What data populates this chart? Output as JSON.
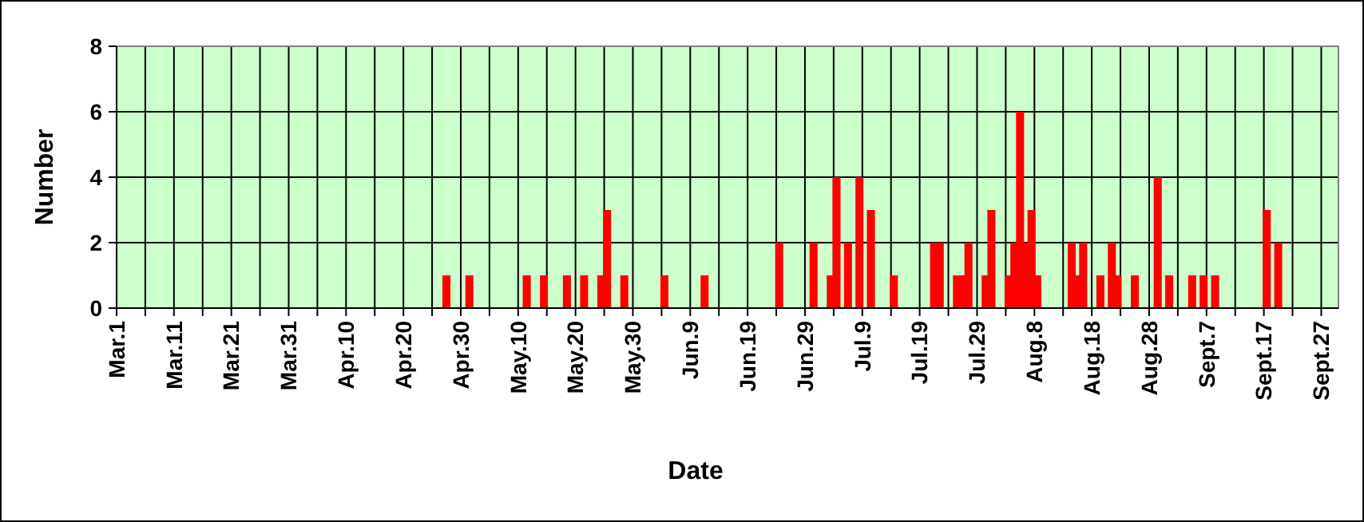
{
  "chart_data": {
    "type": "bar",
    "xlabel": "Date",
    "ylabel": "Number",
    "color": "#ff0000",
    "grid": true,
    "x": [
      "--04-27",
      "--05-01",
      "--05-11",
      "--05-14",
      "--05-18",
      "--05-21",
      "--05-24",
      "--05-25",
      "--05-28",
      "--06-04",
      "--06-11",
      "--06-24",
      "--06-30",
      "--07-03",
      "--07-04",
      "--07-06",
      "--07-08",
      "--07-10",
      "--07-14",
      "--07-21",
      "--07-22",
      "--07-25",
      "--07-26",
      "--07-27",
      "--07-30",
      "--07-31",
      "--08-03",
      "--08-04",
      "--08-05",
      "--08-06",
      "--08-07",
      "--08-08",
      "--08-14",
      "--08-15",
      "--08-16",
      "--08-19",
      "--08-21",
      "--08-22",
      "--08-25",
      "--08-29",
      "--08-31",
      "--09-04",
      "--09-06",
      "--09-08",
      "--09-17",
      "--09-19"
    ],
    "values": [
      1,
      1,
      1,
      1,
      1,
      1,
      1,
      3,
      1,
      1,
      1,
      2,
      2,
      1,
      4,
      2,
      4,
      3,
      1,
      2,
      2,
      1,
      1,
      2,
      1,
      3,
      1,
      2,
      6,
      2,
      3,
      1,
      2,
      1,
      2,
      1,
      2,
      1,
      1,
      4,
      1,
      1,
      1,
      1,
      3,
      2
    ],
    "xlim": [
      "--03-01",
      "--09-30"
    ],
    "xticks": [
      {
        "value": "--03-01",
        "label": "Mar.1"
      },
      {
        "value": "--03-06",
        "label": null
      },
      {
        "value": "--03-11",
        "label": "Mar.11"
      },
      {
        "value": "--03-16",
        "label": null
      },
      {
        "value": "--03-21",
        "label": "Mar.21"
      },
      {
        "value": "--03-26",
        "label": null
      },
      {
        "value": "--03-31",
        "label": "Mar.31"
      },
      {
        "value": "--04-05",
        "label": null
      },
      {
        "value": "--04-10",
        "label": "Apr.10"
      },
      {
        "value": "--04-15",
        "label": null
      },
      {
        "value": "--04-20",
        "label": "Apr.20"
      },
      {
        "value": "--04-25",
        "label": null
      },
      {
        "value": "--04-30",
        "label": "Apr.30"
      },
      {
        "value": "--05-05",
        "label": null
      },
      {
        "value": "--05-10",
        "label": "May.10"
      },
      {
        "value": "--05-15",
        "label": null
      },
      {
        "value": "--05-20",
        "label": "May.20"
      },
      {
        "value": "--05-25",
        "label": null
      },
      {
        "value": "--05-30",
        "label": "May.30"
      },
      {
        "value": "--06-04",
        "label": null
      },
      {
        "value": "--06-09",
        "label": "Jun.9"
      },
      {
        "value": "--06-14",
        "label": null
      },
      {
        "value": "--06-19",
        "label": "Jun.19"
      },
      {
        "value": "--06-24",
        "label": null
      },
      {
        "value": "--06-29",
        "label": "Jun.29"
      },
      {
        "value": "--07-04",
        "label": null
      },
      {
        "value": "--07-09",
        "label": "Jul.9"
      },
      {
        "value": "--07-14",
        "label": null
      },
      {
        "value": "--07-19",
        "label": "Jul.19"
      },
      {
        "value": "--07-24",
        "label": null
      },
      {
        "value": "--07-29",
        "label": "Jul.29"
      },
      {
        "value": "--08-03",
        "label": null
      },
      {
        "value": "--08-08",
        "label": "Aug.8"
      },
      {
        "value": "--08-13",
        "label": null
      },
      {
        "value": "--08-18",
        "label": "Aug.18"
      },
      {
        "value": "--08-23",
        "label": null
      },
      {
        "value": "--08-28",
        "label": "Aug.28"
      },
      {
        "value": "--09-02",
        "label": null
      },
      {
        "value": "--09-07",
        "label": "Sept.7"
      },
      {
        "value": "--09-12",
        "label": null
      },
      {
        "value": "--09-17",
        "label": "Sept.17"
      },
      {
        "value": "--09-22",
        "label": null
      },
      {
        "value": "--09-27",
        "label": "Sept.27"
      }
    ],
    "ylim": [
      0,
      8
    ],
    "yticks": [
      0,
      2,
      4,
      6,
      8
    ]
  }
}
